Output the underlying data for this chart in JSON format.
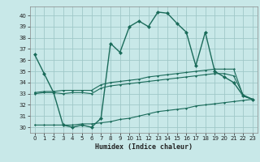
{
  "title": "",
  "xlabel": "Humidex (Indice chaleur)",
  "ylabel": "",
  "bg_color": "#c8e8e8",
  "grid_color": "#a0c8c8",
  "line_color": "#1a6b5a",
  "ylim": [
    29.5,
    40.8
  ],
  "xlim": [
    -0.5,
    23.5
  ],
  "yticks": [
    30,
    31,
    32,
    33,
    34,
    35,
    36,
    37,
    38,
    39,
    40
  ],
  "xticks": [
    0,
    1,
    2,
    3,
    4,
    5,
    6,
    7,
    8,
    9,
    10,
    11,
    12,
    13,
    14,
    15,
    16,
    17,
    18,
    19,
    20,
    21,
    22,
    23
  ],
  "series": [
    {
      "x": [
        0,
        1,
        2,
        3,
        4,
        5,
        6,
        7,
        8,
        9,
        10,
        11,
        12,
        13,
        14,
        15,
        16,
        17,
        18,
        19,
        20,
        21,
        22,
        23
      ],
      "y": [
        36.5,
        34.8,
        33.1,
        30.2,
        30.0,
        30.2,
        30.0,
        30.8,
        37.5,
        36.7,
        39.0,
        39.5,
        39.0,
        40.3,
        40.2,
        39.3,
        38.5,
        35.5,
        38.5,
        35.0,
        34.5,
        34.0,
        32.8,
        32.5
      ],
      "marker": true,
      "lw": 1.0,
      "ms": 2.5
    },
    {
      "x": [
        0,
        1,
        2,
        3,
        4,
        5,
        6,
        7,
        8,
        9,
        10,
        11,
        12,
        13,
        14,
        15,
        16,
        17,
        18,
        19,
        20,
        21,
        22,
        23
      ],
      "y": [
        33.1,
        33.2,
        33.2,
        33.3,
        33.3,
        33.3,
        33.3,
        33.8,
        34.0,
        34.1,
        34.2,
        34.3,
        34.5,
        34.6,
        34.7,
        34.8,
        34.9,
        35.0,
        35.1,
        35.2,
        35.2,
        35.2,
        32.8,
        32.5
      ],
      "marker": true,
      "lw": 0.8,
      "ms": 1.5
    },
    {
      "x": [
        0,
        1,
        2,
        3,
        4,
        5,
        6,
        7,
        8,
        9,
        10,
        11,
        12,
        13,
        14,
        15,
        16,
        17,
        18,
        19,
        20,
        21,
        22,
        23
      ],
      "y": [
        33.0,
        33.1,
        33.1,
        33.0,
        33.1,
        33.1,
        33.0,
        33.5,
        33.7,
        33.8,
        33.9,
        34.0,
        34.1,
        34.2,
        34.3,
        34.4,
        34.5,
        34.6,
        34.7,
        34.8,
        34.8,
        34.6,
        32.9,
        32.5
      ],
      "marker": true,
      "lw": 0.8,
      "ms": 1.5
    },
    {
      "x": [
        0,
        1,
        2,
        3,
        4,
        5,
        6,
        7,
        8,
        9,
        10,
        11,
        12,
        13,
        14,
        15,
        16,
        17,
        18,
        19,
        20,
        21,
        22,
        23
      ],
      "y": [
        30.2,
        30.2,
        30.2,
        30.2,
        30.2,
        30.3,
        30.3,
        30.4,
        30.5,
        30.7,
        30.8,
        31.0,
        31.2,
        31.4,
        31.5,
        31.6,
        31.7,
        31.9,
        32.0,
        32.1,
        32.2,
        32.3,
        32.4,
        32.5
      ],
      "marker": true,
      "lw": 0.8,
      "ms": 1.5
    }
  ]
}
